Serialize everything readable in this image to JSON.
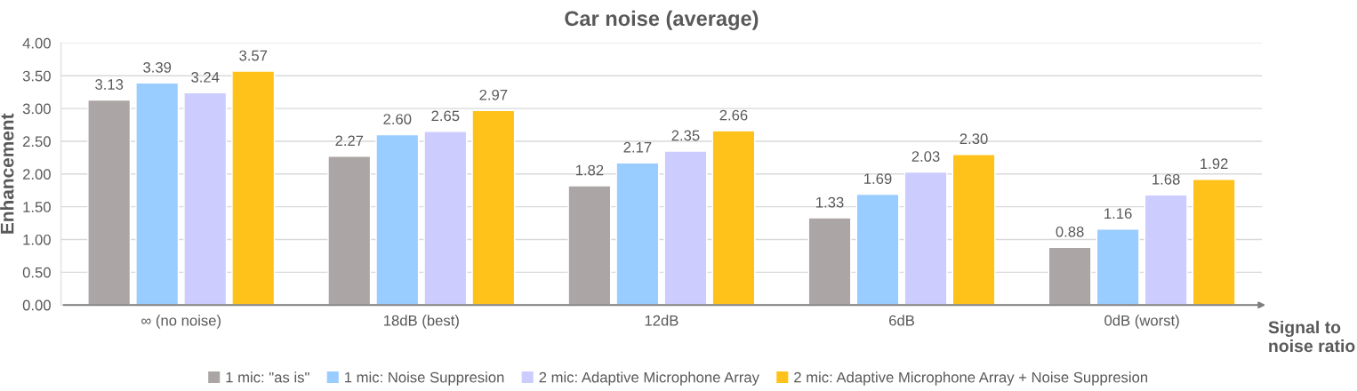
{
  "chart_data": {
    "type": "bar",
    "title": "Car noise (average)",
    "xlabel": "Signal to\nnoise ratio",
    "ylabel": "Enhancement",
    "categories": [
      "∞ (no noise)",
      "18dB (best)",
      "12dB",
      "6dB",
      "0dB (worst)"
    ],
    "series": [
      {
        "name": "1 mic: \"as is\"",
        "color": "#aba6a5",
        "values": [
          3.13,
          2.27,
          1.82,
          1.33,
          0.88
        ],
        "value_labels": [
          "3.13",
          "2.27",
          "1.82",
          "1.33",
          "0.88"
        ]
      },
      {
        "name": "1 mic: Noise Suppresion",
        "color": "#99ccff",
        "values": [
          3.39,
          2.6,
          2.17,
          1.69,
          1.16
        ],
        "value_labels": [
          "3.39",
          "2.60",
          "2.17",
          "1.69",
          "1.16"
        ]
      },
      {
        "name": "2 mic: Adaptive Microphone Array",
        "color": "#ccccff",
        "values": [
          3.24,
          2.65,
          2.35,
          2.03,
          1.68
        ],
        "value_labels": [
          "3.24",
          "2.65",
          "2.35",
          "2.03",
          "1.68"
        ]
      },
      {
        "name": "2 mic: Adaptive Microphone Array + Noise Suppresion",
        "color": "#ffc21a",
        "values": [
          3.57,
          2.97,
          2.66,
          2.3,
          1.92
        ],
        "value_labels": [
          "3.57",
          "2.97",
          "2.66",
          "2.30",
          "1.92"
        ]
      }
    ],
    "ylim": [
      0,
      4
    ],
    "yticks": [
      {
        "value": 0,
        "label": "0.00"
      },
      {
        "value": 0.5,
        "label": "0.50"
      },
      {
        "value": 1,
        "label": "1.00"
      },
      {
        "value": 1.5,
        "label": "1.50"
      },
      {
        "value": 2,
        "label": "2.00"
      },
      {
        "value": 2.5,
        "label": "2.50"
      },
      {
        "value": 3,
        "label": "3.00"
      },
      {
        "value": 3.5,
        "label": "3.50"
      },
      {
        "value": 4,
        "label": "4.00"
      }
    ],
    "grid": "y",
    "legend": "bottom"
  }
}
